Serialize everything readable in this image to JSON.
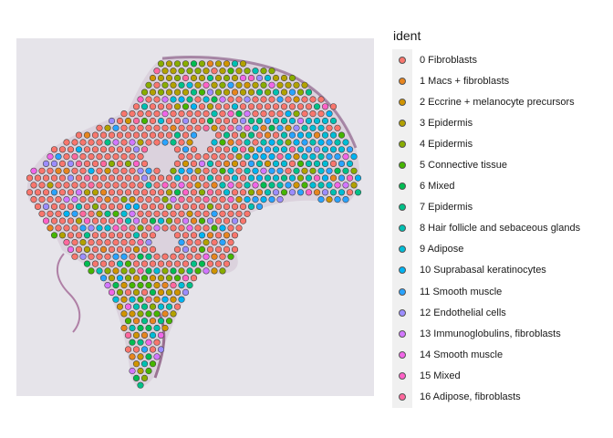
{
  "legend": {
    "title": "ident",
    "items": [
      {
        "label": "0 Fibroblasts",
        "color": "#F8766D"
      },
      {
        "label": "1 Macs + fibroblasts",
        "color": "#E7851E"
      },
      {
        "label": "2 Eccrine + melanocyte precursors",
        "color": "#D09400"
      },
      {
        "label": "3 Epidermis",
        "color": "#B2A100"
      },
      {
        "label": "4 Epidermis",
        "color": "#89AC00"
      },
      {
        "label": "5 Connective tissue",
        "color": "#45B500"
      },
      {
        "label": "6 Mixed",
        "color": "#00BC51"
      },
      {
        "label": "7 Epidermis",
        "color": "#00C087"
      },
      {
        "label": "8 Hair follicle and sebaceous glands",
        "color": "#00C0B2"
      },
      {
        "label": "9 Adipose",
        "color": "#00BCD6"
      },
      {
        "label": "10 Suprabasal keratinocytes",
        "color": "#00B3F2"
      },
      {
        "label": "11 Smooth muscle",
        "color": "#29A3FF"
      },
      {
        "label": "12 Endothelial cells",
        "color": "#9C8DFF"
      },
      {
        "label": "13 Immunoglobulins, fibroblasts",
        "color": "#D277FF"
      },
      {
        "label": "14 Smooth muscle",
        "color": "#F166E8"
      },
      {
        "label": "15 Mixed",
        "color": "#FF61C7"
      },
      {
        "label": "16 Adipose, fibroblasts",
        "color": "#FF689E"
      }
    ]
  },
  "background_color": "#e6e4ea",
  "tissue_color": "#b9a4b8"
}
